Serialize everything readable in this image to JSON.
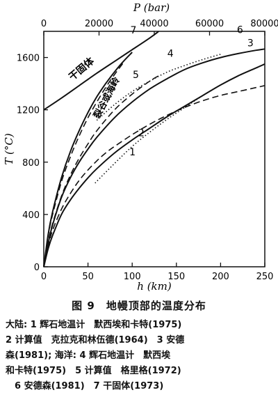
{
  "chart_data": {
    "type": "line",
    "top_axis_label": "P (bar)",
    "top_ticks": [
      "0",
      "20000",
      "40000",
      "60000",
      "80000"
    ],
    "bottom_ticks": [
      "0",
      "50",
      "100",
      "150",
      "200",
      "250"
    ],
    "left_ticks": [
      "0",
      "400",
      "800",
      "1200",
      "1600"
    ],
    "ylabel": "T (°C)",
    "xlabel": "h (km)",
    "xlim": [
      0,
      250
    ],
    "ylim": [
      0,
      1800
    ],
    "annotations": {
      "solidus": "干固体",
      "rift": "裂谷或海岭"
    },
    "series": [
      {
        "label": "1",
        "style": "dotted",
        "x": [
          58,
          80,
          100,
          120,
          140,
          160,
          180,
          200
        ],
        "y": [
          640,
          790,
          920,
          1030,
          1130,
          1220,
          1310,
          1390
        ]
      },
      {
        "label": "2",
        "style": "dashed",
        "x": [
          0,
          5,
          10,
          20,
          30,
          40,
          50,
          60,
          70,
          80,
          100,
          120,
          140,
          160,
          180,
          200,
          220,
          240,
          250
        ],
        "y": [
          0,
          160,
          280,
          440,
          560,
          660,
          740,
          810,
          870,
          920,
          1010,
          1090,
          1160,
          1220,
          1270,
          1310,
          1340,
          1370,
          1385
        ]
      },
      {
        "label": "3",
        "style": "solid",
        "x": [
          0,
          5,
          10,
          20,
          30,
          40,
          50,
          60,
          80,
          100,
          120,
          140,
          160,
          180,
          200,
          220,
          240,
          250
        ],
        "y": [
          0,
          140,
          240,
          400,
          510,
          600,
          680,
          750,
          870,
          970,
          1060,
          1150,
          1230,
          1310,
          1390,
          1460,
          1520,
          1550
        ]
      },
      {
        "label": "4",
        "style": "dotted",
        "x": [
          60,
          80,
          100,
          120,
          140,
          160,
          180,
          200
        ],
        "y": [
          1120,
          1240,
          1340,
          1420,
          1490,
          1540,
          1585,
          1625
        ]
      },
      {
        "label": "5",
        "style": "dashed",
        "x": [
          0,
          5,
          10,
          20,
          30,
          40,
          50,
          60,
          80,
          100,
          120,
          130
        ],
        "y": [
          0,
          190,
          330,
          540,
          700,
          830,
          940,
          1040,
          1200,
          1320,
          1420,
          1460
        ]
      },
      {
        "label": "6",
        "style": "solid",
        "x": [
          0,
          5,
          10,
          20,
          30,
          40,
          50,
          60,
          80,
          100,
          120,
          140,
          160,
          180,
          200,
          220,
          240,
          250
        ],
        "y": [
          0,
          180,
          320,
          530,
          680,
          800,
          900,
          990,
          1140,
          1260,
          1360,
          1440,
          1510,
          1560,
          1600,
          1630,
          1655,
          1665
        ]
      },
      {
        "label": "7",
        "style": "solid",
        "x": [
          0,
          20,
          40,
          60,
          80,
          100,
          120,
          130
        ],
        "y": [
          1200,
          1290,
          1385,
          1480,
          1570,
          1660,
          1750,
          1800
        ]
      },
      {
        "label": "",
        "style": "solid",
        "x": [
          0,
          5,
          10,
          20,
          30,
          40,
          50,
          60,
          70,
          80,
          90,
          100
        ],
        "y": [
          0,
          250,
          420,
          680,
          880,
          1040,
          1180,
          1300,
          1400,
          1490,
          1570,
          1640
        ]
      },
      {
        "label": "",
        "style": "dashed",
        "x": [
          0,
          5,
          10,
          20,
          30,
          40,
          50,
          60,
          70,
          80,
          90
        ],
        "y": [
          0,
          240,
          400,
          650,
          840,
          1000,
          1140,
          1260,
          1370,
          1470,
          1560
        ]
      }
    ]
  },
  "caption": {
    "title": "图 9　地幔顶部的温度分布",
    "lines": [
      "大陆: 1 辉石地温计　默西埃和卡特(1975)",
      "2 计算值　克拉克和林伍德(1964)　3 安德",
      "森(1981); 海洋: 4 辉石地温计　默西埃",
      "和卡特(1975)　5 计算值　格里格(1972)",
      "　6 安德森(1981)　7 干固体(1973)"
    ]
  }
}
